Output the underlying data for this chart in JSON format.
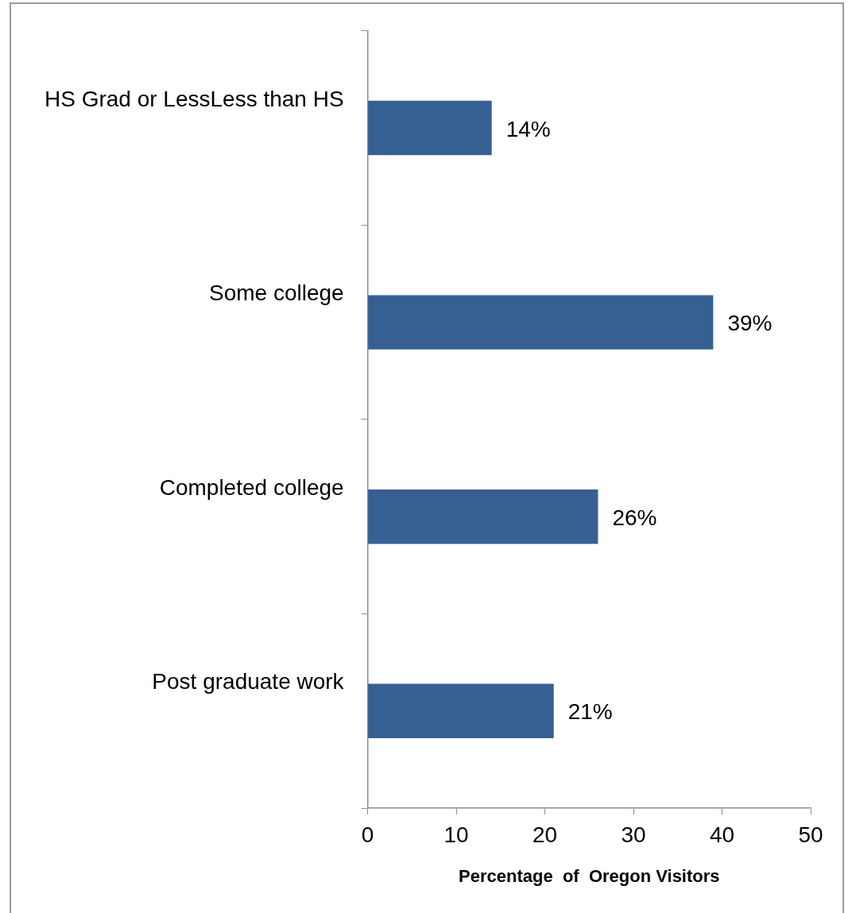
{
  "chart_data": {
    "type": "bar",
    "orientation": "horizontal",
    "xlabel": "Percentage  of  Oregon Visitors",
    "categories": [
      "HS Grad or LessLess than HS",
      "Some college",
      "Completed college",
      "Post graduate work"
    ],
    "values": [
      14,
      39,
      26,
      21
    ],
    "value_labels": [
      "14%",
      "39%",
      "26%",
      "21%"
    ],
    "color": "#366092",
    "xlim": [
      0,
      50
    ],
    "xticks": [
      0,
      10,
      20,
      30,
      40,
      50
    ],
    "grid": false,
    "legend": false
  }
}
